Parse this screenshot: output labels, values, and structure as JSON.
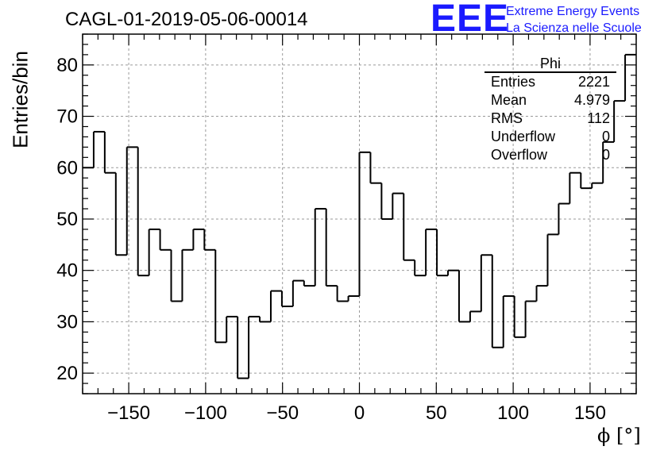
{
  "header": {
    "title": "CAGL-01-2019-05-06-00014",
    "logo_text": "EEE",
    "logo_line1": "Extreme Energy Events",
    "logo_line2": "La Scienza nelle Scuole"
  },
  "colors": {
    "logo": "#1a1aff",
    "line": "#000000",
    "grid": "#9a9a9a"
  },
  "stats_box": {
    "title": "Phi",
    "rows": [
      {
        "label": "Entries",
        "value": "2221"
      },
      {
        "label": "Mean",
        "value": "4.979"
      },
      {
        "label": "RMS",
        "value": "112"
      },
      {
        "label": "Underflow",
        "value": "0"
      },
      {
        "label": "Overflow",
        "value": "0"
      }
    ]
  },
  "chart_data": {
    "type": "bar",
    "style": "step-histogram",
    "title": "CAGL-01-2019-05-06-00014",
    "xlabel": "ϕ [°]",
    "ylabel": "Entries/bin",
    "xlim": [
      -180,
      180
    ],
    "ylim": [
      16,
      86
    ],
    "bin_width": 7.2,
    "x_ticks": [
      -150,
      -100,
      -50,
      0,
      50,
      100,
      150
    ],
    "x_tick_labels": [
      "−150",
      "−100",
      "−50",
      "0",
      "50",
      "100",
      "150"
    ],
    "y_ticks": [
      20,
      30,
      40,
      50,
      60,
      70,
      80
    ],
    "y_tick_labels": [
      "20",
      "30",
      "40",
      "50",
      "60",
      "70",
      "80"
    ],
    "grid": true,
    "legend": "top-right",
    "values": [
      60,
      67,
      59,
      43,
      64,
      39,
      48,
      44,
      34,
      44,
      48,
      44,
      26,
      31,
      19,
      31,
      30,
      36,
      33,
      38,
      37,
      52,
      37,
      34,
      35,
      63,
      57,
      50,
      55,
      42,
      39,
      48,
      39,
      40,
      30,
      32,
      43,
      25,
      35,
      27,
      34,
      37,
      47,
      53,
      59,
      56,
      57,
      65,
      73,
      82
    ]
  }
}
